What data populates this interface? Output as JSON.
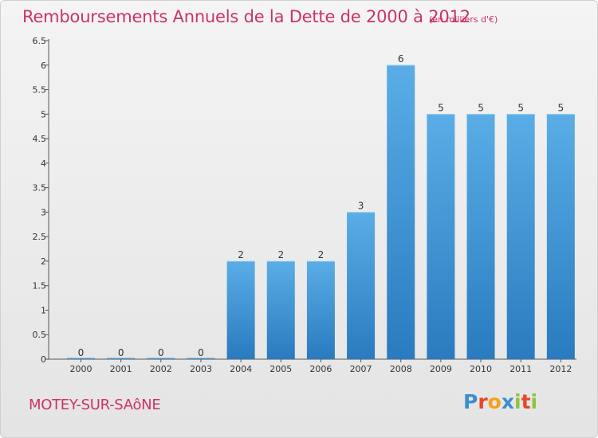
{
  "title": "Remboursements Annuels de la Dette de 2000 à 2012",
  "subtitle": "(en milliers d'€)",
  "commune": "MOTEY-SUR-SAôNE",
  "logo": {
    "letters": [
      "P",
      "r",
      "o",
      "x",
      "i",
      "t",
      "i"
    ],
    "colors": [
      "#3a8fd0",
      "#e8462b",
      "#f5a21b",
      "#3a8fd0",
      "#8cc63f",
      "#e8462b",
      "#8cc63f"
    ]
  },
  "colors": {
    "bar_light": "#5aade6",
    "bar_dark": "#2a7bbf",
    "title": "#cc3366"
  },
  "chart_data": {
    "type": "bar",
    "title": "Remboursements Annuels de la Dette de 2000 à 2012",
    "xlabel": "",
    "ylabel": "",
    "categories": [
      "2000",
      "2001",
      "2002",
      "2003",
      "2004",
      "2005",
      "2006",
      "2007",
      "2008",
      "2009",
      "2010",
      "2011",
      "2012"
    ],
    "values": [
      0,
      0,
      0,
      0,
      2,
      2,
      2,
      3,
      6,
      5,
      5,
      5,
      5
    ],
    "value_labels": [
      "0",
      "0",
      "0",
      "0",
      "2",
      "2",
      "2",
      "3",
      "6",
      "5",
      "5",
      "5",
      "5"
    ],
    "yticks": [
      "0",
      "0.5",
      "1",
      "1.5",
      "2",
      "2.5",
      "3",
      "3.5",
      "4",
      "4.5",
      "5",
      "5.5",
      "6",
      "6.5"
    ],
    "ylim": [
      0,
      6.5
    ],
    "grid": false
  }
}
